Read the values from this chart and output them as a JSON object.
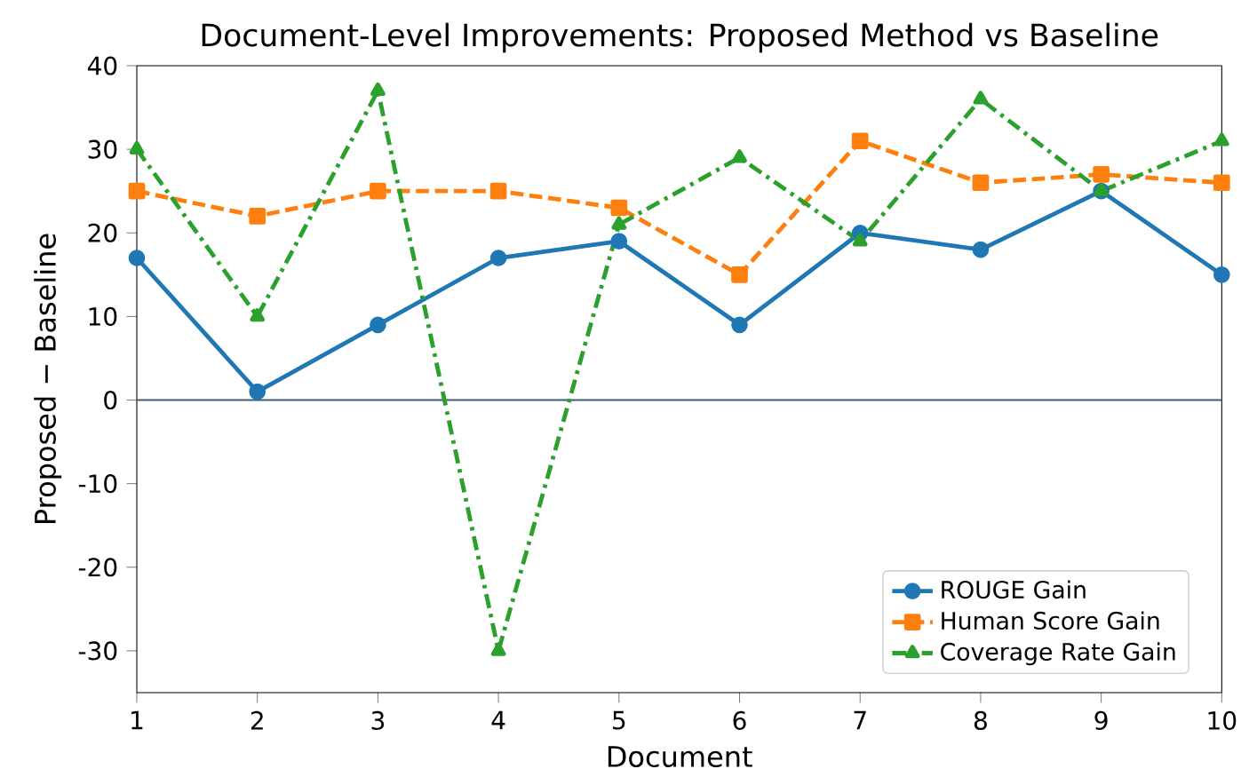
{
  "chart_data": {
    "type": "line",
    "title": "Document-Level Improvements: Proposed Method vs Baseline",
    "xlabel": "Document",
    "ylabel": "Proposed − Baseline",
    "x": [
      1,
      2,
      3,
      4,
      5,
      6,
      7,
      8,
      9,
      10
    ],
    "series": [
      {
        "name": "ROUGE Gain",
        "color": "#1f77b4",
        "marker": "circle",
        "line_style": "solid",
        "values": [
          17,
          1,
          9,
          17,
          19,
          9,
          20,
          18,
          25,
          15
        ]
      },
      {
        "name": "Human Score Gain",
        "color": "#ff7f0e",
        "marker": "square",
        "line_style": "dashed",
        "values": [
          25,
          22,
          25,
          25,
          23,
          15,
          31,
          26,
          27,
          26
        ]
      },
      {
        "name": "Coverage Rate Gain",
        "color": "#2ca02c",
        "marker": "triangle",
        "line_style": "dashdot",
        "values": [
          30,
          10,
          37,
          -30,
          21,
          29,
          19,
          36,
          25,
          31
        ]
      }
    ],
    "xlim": [
      1,
      10
    ],
    "ylim": [
      -35,
      40
    ],
    "xticks": [
      1,
      2,
      3,
      4,
      5,
      6,
      7,
      8,
      9,
      10
    ],
    "yticks": [
      -30,
      -20,
      -10,
      0,
      10,
      20,
      30,
      40
    ],
    "ref_lines": [
      {
        "axis": "y",
        "value": 0,
        "color": "#3d5a78"
      }
    ],
    "grid": false,
    "legend": "bottom right"
  }
}
